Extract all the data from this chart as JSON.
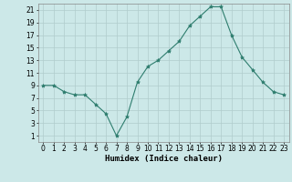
{
  "x": [
    0,
    1,
    2,
    3,
    4,
    5,
    6,
    7,
    8,
    9,
    10,
    11,
    12,
    13,
    14,
    15,
    16,
    17,
    18,
    19,
    20,
    21,
    22,
    23
  ],
  "y": [
    9,
    9,
    8,
    7.5,
    7.5,
    6,
    4.5,
    1,
    4,
    9.5,
    12,
    13,
    14.5,
    16,
    18.5,
    20,
    21.5,
    21.5,
    17,
    13.5,
    11.5,
    9.5,
    8,
    7.5
  ],
  "line_color": "#2e7d6e",
  "marker": "*",
  "marker_size": 3,
  "background_color": "#cce8e8",
  "grid_color": "#b0cccc",
  "xlabel": "Humidex (Indice chaleur)",
  "xlim": [
    -0.5,
    23.5
  ],
  "ylim": [
    0,
    22
  ],
  "yticks": [
    1,
    3,
    5,
    7,
    9,
    11,
    13,
    15,
    17,
    19,
    21
  ],
  "xticks": [
    0,
    1,
    2,
    3,
    4,
    5,
    6,
    7,
    8,
    9,
    10,
    11,
    12,
    13,
    14,
    15,
    16,
    17,
    18,
    19,
    20,
    21,
    22,
    23
  ],
  "label_fontsize": 6.5,
  "tick_fontsize": 5.5
}
